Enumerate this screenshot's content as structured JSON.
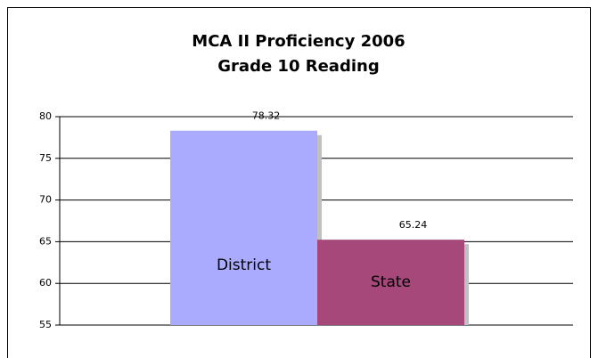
{
  "chart_data": {
    "type": "bar",
    "title_lines": [
      "MCA II Proficiency 2006",
      "Grade 10 Reading"
    ],
    "categories": [
      "District",
      "State"
    ],
    "values": [
      78.32,
      65.24
    ],
    "colors": [
      "#aaaaff",
      "#a6497a"
    ],
    "ylim": [
      55,
      80
    ],
    "yticks": [
      55,
      60,
      65,
      70,
      75,
      80
    ],
    "grid": true
  }
}
